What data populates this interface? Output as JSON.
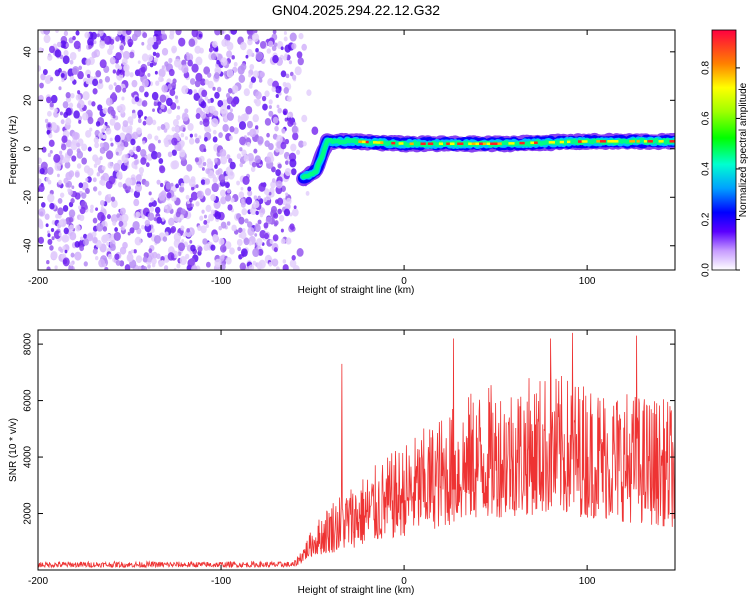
{
  "title": "GN04.2025.294.22.12.G32",
  "chart_data": [
    {
      "type": "heatmap",
      "xlabel": "Height of straight line (km)",
      "ylabel": "Frequency (Hz)",
      "xlim": [
        -200,
        148
      ],
      "ylim": [
        -50,
        49
      ],
      "xticks": [
        -200,
        -100,
        0,
        100
      ],
      "yticks": [
        -40,
        -20,
        0,
        20,
        40
      ],
      "colorbar": {
        "label": "Normalized spectral amplitude",
        "range": [
          0,
          0.95
        ],
        "ticks": [
          0.0,
          0.2,
          0.4,
          0.6,
          0.8
        ]
      },
      "features": {
        "noise_region_x": [
          -200,
          -60
        ],
        "signal_trace": [
          {
            "x": -55,
            "f": -12
          },
          {
            "x": -48,
            "f": -9
          },
          {
            "x": -42,
            "f": 3
          },
          {
            "x": -30,
            "f": 3
          },
          {
            "x": 0,
            "f": 2
          },
          {
            "x": 50,
            "f": 2
          },
          {
            "x": 100,
            "f": 3
          },
          {
            "x": 148,
            "f": 3
          }
        ]
      }
    },
    {
      "type": "line",
      "xlabel": "Height of straight line (km)",
      "ylabel": "SNR (10 * v/v)",
      "xlim": [
        -200,
        148
      ],
      "ylim": [
        0,
        8500
      ],
      "xticks": [
        -200,
        -100,
        0,
        100
      ],
      "yticks": [
        2000,
        4000,
        6000,
        8000
      ],
      "series": [
        {
          "name": "SNR",
          "color": "#ee3333",
          "envelope": [
            {
              "x": -200,
              "low": 100,
              "high": 300
            },
            {
              "x": -60,
              "low": 100,
              "high": 300
            },
            {
              "x": -50,
              "low": 500,
              "high": 1500
            },
            {
              "x": -40,
              "low": 600,
              "high": 2500
            },
            {
              "x": 0,
              "low": 1200,
              "high": 4500
            },
            {
              "x": 40,
              "low": 1800,
              "high": 6500
            },
            {
              "x": 80,
              "low": 2000,
              "high": 7000
            },
            {
              "x": 148,
              "low": 1500,
              "high": 6000
            }
          ],
          "peaks": [
            {
              "x": -34,
              "y": 7300
            },
            {
              "x": 27,
              "y": 8200
            },
            {
              "x": 80,
              "y": 8200
            },
            {
              "x": 92,
              "y": 8400
            },
            {
              "x": 127,
              "y": 8300
            }
          ]
        }
      ]
    }
  ]
}
